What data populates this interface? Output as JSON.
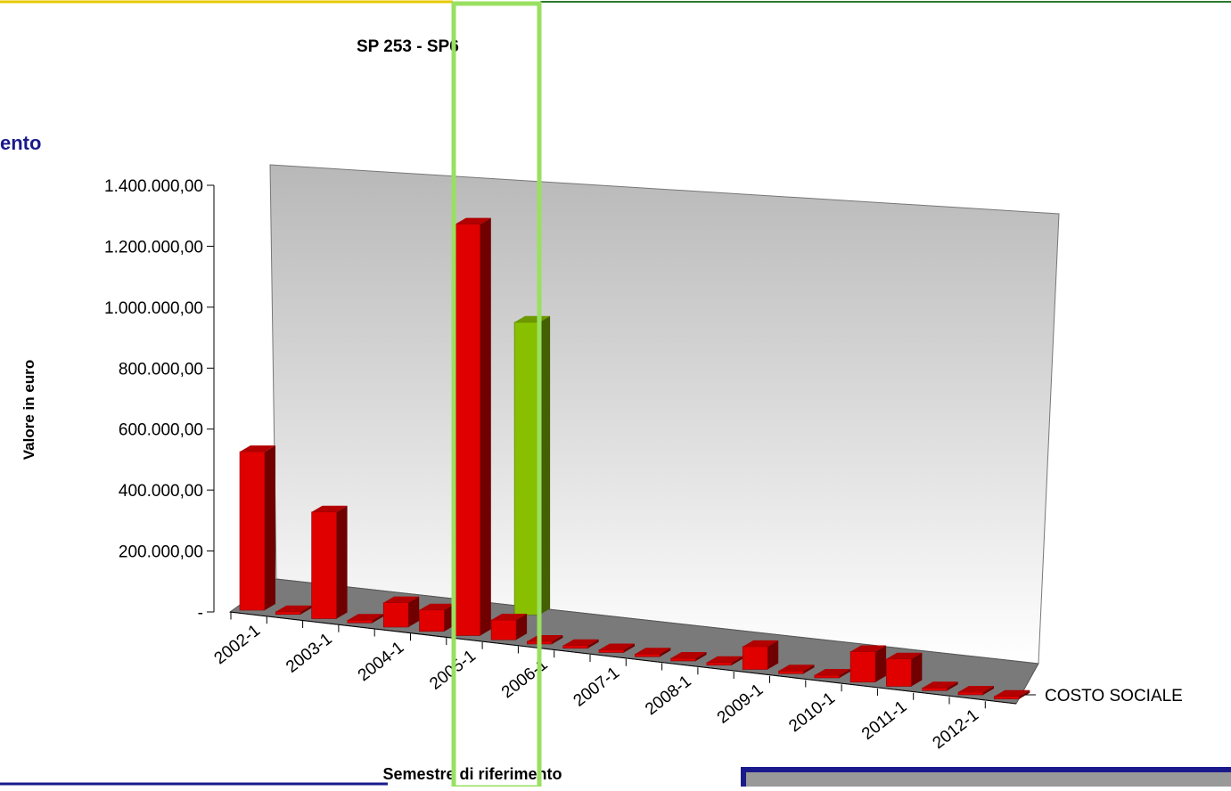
{
  "fragment": "ento",
  "chart_data": {
    "type": "bar3d",
    "title": "SP 253 - SP6",
    "x_label": "Semestre di riferimento",
    "y_label": "Valore in euro",
    "categories": [
      "2002-1",
      null,
      "2003-1",
      null,
      "2004-1",
      null,
      "2005-1",
      null,
      "2006-1",
      null,
      "2007-1",
      null,
      "2008-1",
      null,
      "2009-1",
      null,
      "2010-1",
      null,
      "2011-1",
      null,
      "2012-1",
      null
    ],
    "series": [
      {
        "name": "COSTO SOCIALE",
        "color": "#e00000",
        "values": [
          520000,
          0,
          350000,
          0,
          80000,
          70000,
          1350000,
          65000,
          0,
          0,
          0,
          0,
          0,
          0,
          75000,
          0,
          0,
          100000,
          90000,
          0,
          0,
          0
        ]
      },
      {
        "color": "#88c000",
        "values": [
          null,
          null,
          null,
          null,
          null,
          null,
          null,
          960000,
          null,
          null,
          null,
          null,
          null,
          null,
          null,
          null,
          null,
          null,
          null,
          null,
          null,
          null
        ]
      }
    ],
    "ylim": [
      0,
      1400000
    ],
    "yticks": [
      {
        "value": 0,
        "label": "-"
      },
      {
        "value": 200000,
        "label": "200.000,00"
      },
      {
        "value": 400000,
        "label": "400.000,00"
      },
      {
        "value": 600000,
        "label": "600.000,00"
      },
      {
        "value": 800000,
        "label": "800.000,00"
      },
      {
        "value": 1000000,
        "label": "1.000.000,00"
      },
      {
        "value": 1200000,
        "label": "1.200.000,00"
      },
      {
        "value": 1400000,
        "label": "1.400.000,00"
      }
    ]
  }
}
